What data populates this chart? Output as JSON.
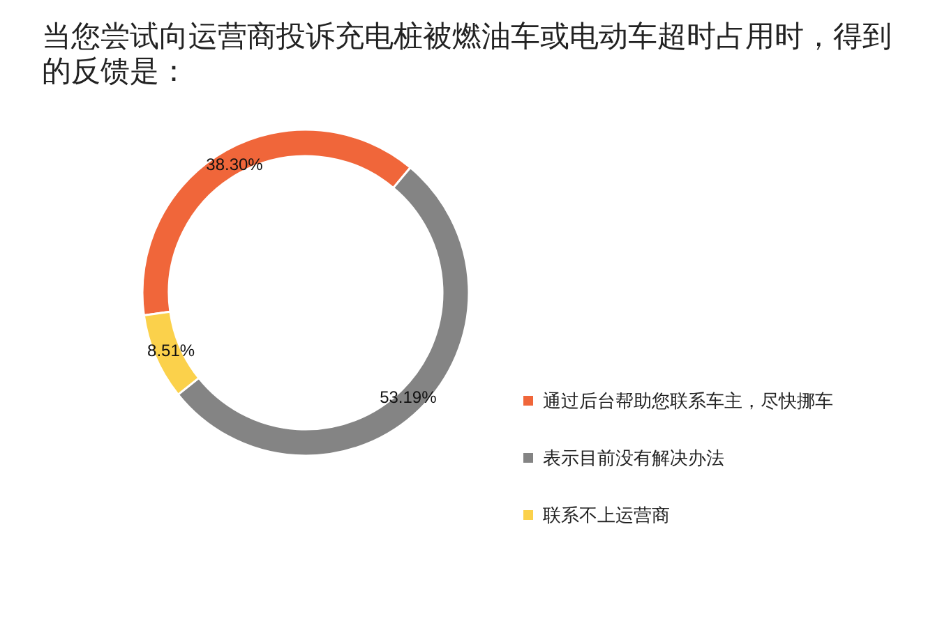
{
  "chart_data": {
    "type": "donut",
    "title": "当您尝试向运营商投诉充电桩被燃油车或电动车超时占用时，得到的反馈是：",
    "categories": [
      "通过后台帮助您联系车主，尽快挪车",
      "表示目前没有解决办法",
      "联系不上运营商"
    ],
    "values": [
      38.3,
      53.19,
      8.51
    ],
    "colors": [
      "#f0663a",
      "#848484",
      "#fbd14b"
    ],
    "value_labels": [
      "38.30%",
      "53.19%",
      "8.51%"
    ],
    "legend": "right"
  }
}
